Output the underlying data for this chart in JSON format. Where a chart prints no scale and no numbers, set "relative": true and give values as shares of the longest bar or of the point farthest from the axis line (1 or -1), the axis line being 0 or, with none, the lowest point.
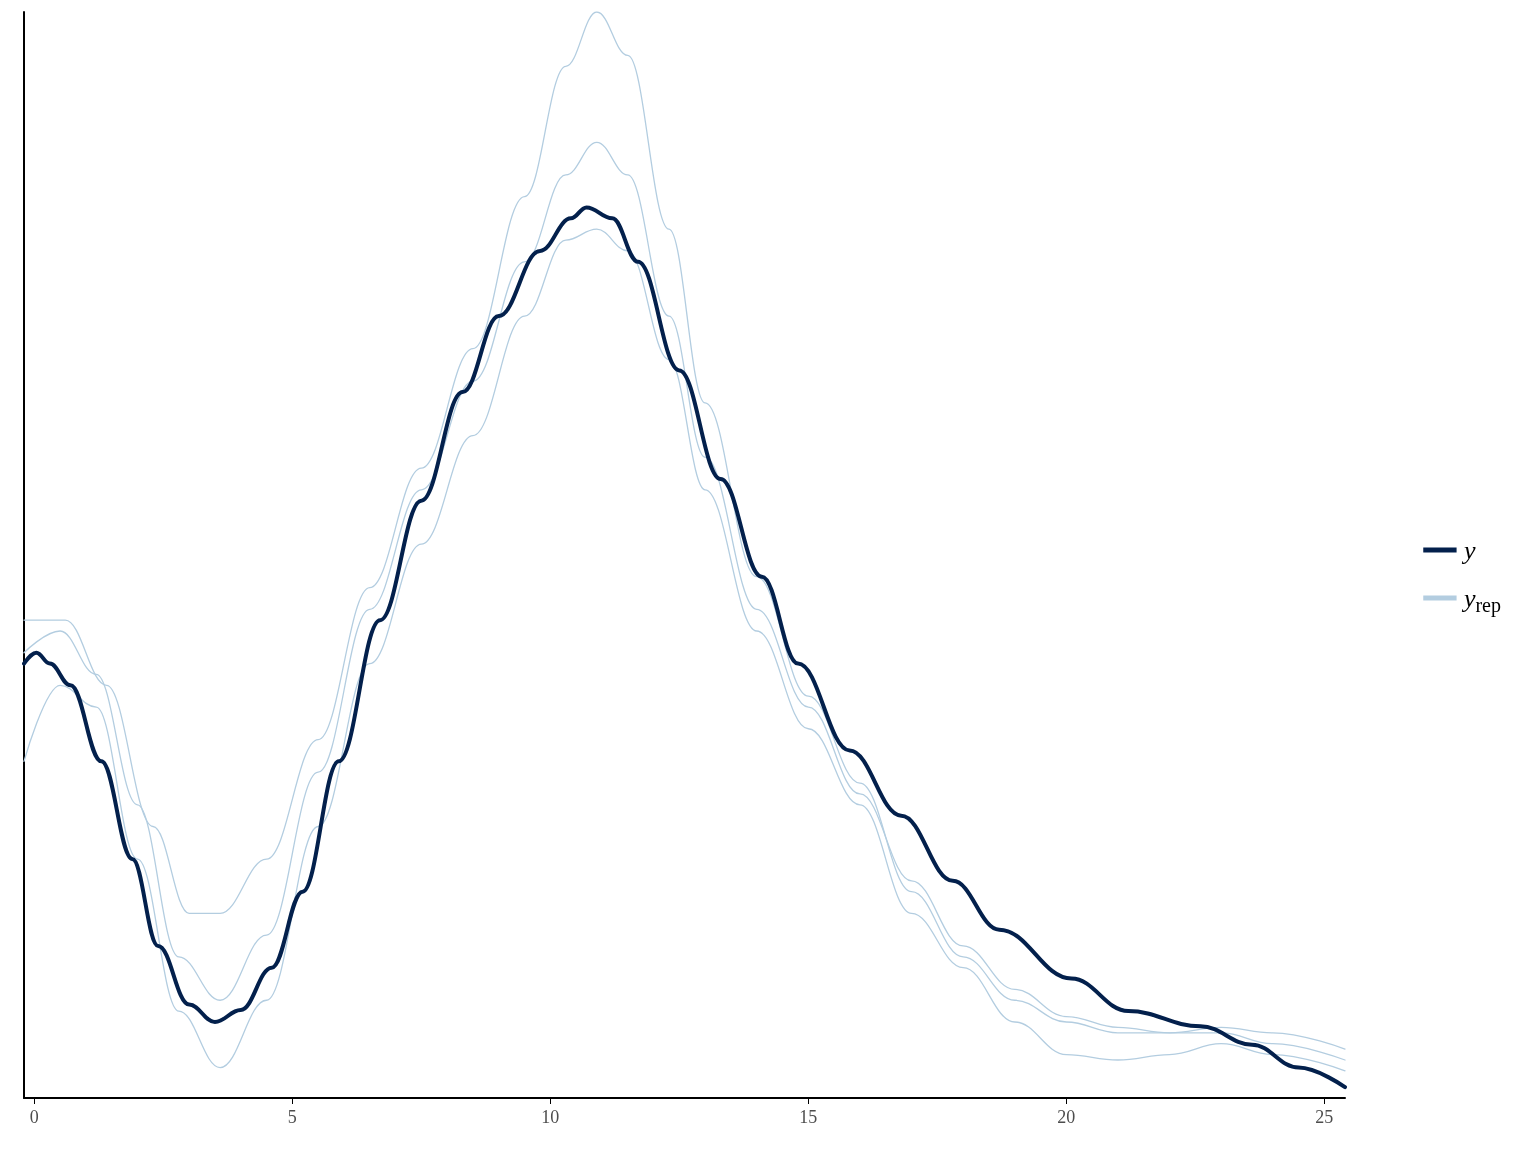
{
  "chart_data": {
    "type": "line",
    "relative": true,
    "legend": "right",
    "line_style": "solid",
    "marker": "none",
    "xlim": [
      -0.2,
      25.4
    ],
    "xticks": [
      0,
      5,
      10,
      15,
      20,
      25
    ],
    "series": [
      {
        "name": "y$_{rep}$",
        "color": "#b3cde0",
        "x": [
          -0.2,
          0.5,
          1.2,
          2,
          2.8,
          3.6,
          4.5,
          5.5,
          6.5,
          7.5,
          8.5,
          9.5,
          10.3,
          10.9,
          11.5,
          12.3,
          13,
          14,
          15,
          16,
          17,
          18,
          19,
          20,
          21,
          22,
          23,
          24,
          25.4
        ],
        "values": [
          0.41,
          0.43,
          0.39,
          0.27,
          0.13,
          0.09,
          0.15,
          0.3,
          0.45,
          0.56,
          0.66,
          0.77,
          0.85,
          0.88,
          0.85,
          0.72,
          0.59,
          0.45,
          0.36,
          0.28,
          0.2,
          0.14,
          0.1,
          0.075,
          0.065,
          0.06,
          0.06,
          0.05,
          0.035
        ]
      },
      {
        "color": "#b3cde0",
        "x": [
          -0.2,
          0.6,
          1.4,
          2.3,
          3,
          3.6,
          4.5,
          5.5,
          6.5,
          7.5,
          8.5,
          9.5,
          10.3,
          10.9,
          11.5,
          12.3,
          13,
          14,
          15,
          16,
          17,
          18,
          19,
          20,
          21,
          22,
          23,
          24,
          25.4
        ],
        "values": [
          0.44,
          0.44,
          0.38,
          0.25,
          0.17,
          0.17,
          0.22,
          0.33,
          0.47,
          0.58,
          0.69,
          0.83,
          0.95,
          1,
          0.96,
          0.8,
          0.64,
          0.48,
          0.37,
          0.29,
          0.19,
          0.13,
          0.09,
          0.07,
          0.06,
          0.06,
          0.065,
          0.06,
          0.045
        ]
      },
      {
        "color": "#b3cde0",
        "x": [
          -0.2,
          0.5,
          1.2,
          2,
          2.8,
          3.6,
          4.5,
          5.5,
          6.5,
          7.5,
          8.5,
          9.5,
          10.3,
          10.9,
          11.5,
          12.3,
          13,
          14,
          15,
          16,
          17,
          18,
          19,
          20,
          21,
          22,
          23,
          24,
          25.4
        ],
        "values": [
          0.31,
          0.38,
          0.36,
          0.22,
          0.08,
          0.028,
          0.09,
          0.25,
          0.4,
          0.51,
          0.61,
          0.72,
          0.79,
          0.8,
          0.78,
          0.68,
          0.56,
          0.43,
          0.34,
          0.27,
          0.17,
          0.12,
          0.07,
          0.04,
          0.035,
          0.04,
          0.05,
          0.04,
          0.025
        ]
      },
      {
        "name": "y",
        "color": "#03204c",
        "x": [
          -0.2,
          0.04,
          0.3,
          0.7,
          1.3,
          1.9,
          2.4,
          3,
          3.5,
          4,
          4.6,
          5.2,
          5.9,
          6.7,
          7.5,
          8.3,
          9,
          9.8,
          10.4,
          10.7,
          11.2,
          11.7,
          12.5,
          13.3,
          14.1,
          14.8,
          15.8,
          16.8,
          17.8,
          18.7,
          20.1,
          21.2,
          22.6,
          23.6,
          24.5,
          25.4
        ],
        "values": [
          0.4,
          0.41,
          0.4,
          0.38,
          0.31,
          0.22,
          0.14,
          0.086,
          0.07,
          0.081,
          0.12,
          0.19,
          0.31,
          0.44,
          0.55,
          0.65,
          0.72,
          0.78,
          0.81,
          0.82,
          0.81,
          0.77,
          0.67,
          0.57,
          0.48,
          0.4,
          0.32,
          0.26,
          0.2,
          0.155,
          0.11,
          0.08,
          0.066,
          0.049,
          0.028,
          0.01
        ]
      }
    ]
  }
}
